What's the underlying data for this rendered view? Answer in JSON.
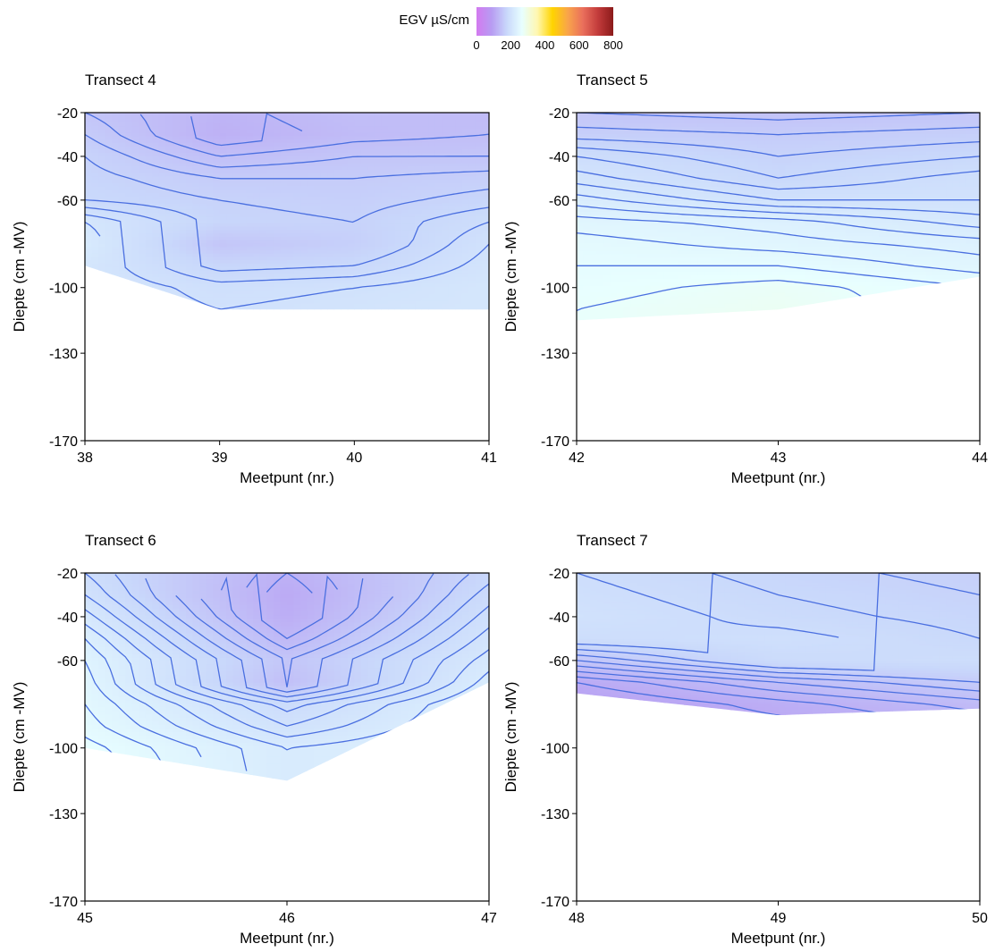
{
  "legend": {
    "title": "EGV µS/cm",
    "min": 0,
    "max": 800,
    "ticks": [
      0,
      200,
      400,
      600,
      800
    ],
    "colors": [
      "#d37af0",
      "#b79cf2",
      "#c9d8fb",
      "#e8ffff",
      "#fff7b0",
      "#ffd400",
      "#f9a54a",
      "#ea6f5c",
      "#c23b3b",
      "#8b1a1a"
    ]
  },
  "chart_data": [
    {
      "type": "heatmap",
      "title": "Transect 4",
      "xlabel": "Meetpunt (nr.)",
      "ylabel": "Diepte (cm -MV)",
      "xlim": [
        38,
        41
      ],
      "ylim": [
        -170,
        -20
      ],
      "xticks": [
        38,
        39,
        40,
        41
      ],
      "yticks": [
        -20,
        -40,
        -60,
        -100,
        -130,
        -170
      ],
      "x": [
        38,
        39,
        40,
        41
      ],
      "y": [
        -20,
        -30,
        -40,
        -50,
        -60,
        -70,
        -80,
        -90,
        -100,
        -110
      ],
      "z": [
        [
          150,
          125,
          140,
          135
        ],
        [
          160,
          120,
          135,
          140
        ],
        [
          170,
          140,
          150,
          150
        ],
        [
          175,
          160,
          160,
          165
        ],
        [
          180,
          170,
          165,
          175
        ],
        [
          210,
          175,
          170,
          190
        ],
        [
          220,
          150,
          165,
          200
        ],
        [
          210,
          175,
          180,
          205
        ],
        [
          null,
          195,
          200,
          210
        ],
        [
          null,
          200,
          205,
          210
        ]
      ],
      "bottom_depth": [
        -90,
        -110,
        -110,
        -110
      ]
    },
    {
      "type": "heatmap",
      "title": "Transect 5",
      "xlabel": "Meetpunt (nr.)",
      "ylabel": "Diepte (cm -MV)",
      "xlim": [
        42,
        44
      ],
      "ylim": [
        -170,
        -20
      ],
      "xticks": [
        42,
        43,
        44
      ],
      "yticks": [
        -20,
        -40,
        -60,
        -100,
        -130,
        -170
      ],
      "x": [
        42,
        43,
        44
      ],
      "y": [
        -20,
        -30,
        -40,
        -50,
        -60,
        -70,
        -80,
        -90,
        -100,
        -110
      ],
      "z": [
        [
          150,
          145,
          150
        ],
        [
          165,
          160,
          165
        ],
        [
          190,
          170,
          180
        ],
        [
          205,
          180,
          195
        ],
        [
          225,
          200,
          200
        ],
        [
          245,
          235,
          215
        ],
        [
          255,
          245,
          235
        ],
        [
          260,
          260,
          245
        ],
        [
          265,
          275,
          260
        ],
        [
          270,
          280,
          null
        ]
      ],
      "bottom_depth": [
        -115,
        -110,
        -95
      ]
    },
    {
      "type": "heatmap",
      "title": "Transect 6",
      "xlabel": "Meetpunt (nr.)",
      "ylabel": "Diepte (cm -MV)",
      "xlim": [
        45,
        47
      ],
      "ylim": [
        -170,
        -20
      ],
      "xticks": [
        45,
        46,
        47
      ],
      "yticks": [
        -20,
        -40,
        -60,
        -100,
        -130,
        -170
      ],
      "x": [
        45,
        46,
        47
      ],
      "y": [
        -20,
        -30,
        -40,
        -50,
        -60,
        -70,
        -80,
        -90,
        -100,
        -110
      ],
      "z": [
        [
          190,
          120,
          175
        ],
        [
          200,
          110,
          185
        ],
        [
          215,
          115,
          195
        ],
        [
          230,
          130,
          205
        ],
        [
          240,
          150,
          215
        ],
        [
          245,
          140,
          225
        ],
        [
          250,
          185,
          235
        ],
        [
          255,
          200,
          null
        ],
        [
          265,
          220,
          null
        ],
        [
          270,
          null,
          null
        ]
      ],
      "bottom_depth": [
        -100,
        -115,
        -70
      ]
    },
    {
      "type": "heatmap",
      "title": "Transect 7",
      "xlabel": "Meetpunt (nr.)",
      "ylabel": "Diepte (cm -MV)",
      "xlim": [
        48,
        50
      ],
      "ylim": [
        -170,
        -20
      ],
      "xticks": [
        48,
        49,
        50
      ],
      "yticks": [
        -20,
        -40,
        -60,
        -100,
        -130,
        -170
      ],
      "x": [
        48,
        49,
        50
      ],
      "y": [
        -20,
        -30,
        -40,
        -50,
        -60,
        -70,
        -80,
        -90
      ],
      "z": [
        [
          190,
          175,
          165
        ],
        [
          195,
          180,
          170
        ],
        [
          200,
          185,
          175
        ],
        [
          190,
          195,
          180
        ],
        [
          150,
          185,
          190
        ],
        [
          110,
          140,
          160
        ],
        [
          95,
          115,
          135
        ],
        [
          null,
          105,
          120
        ]
      ],
      "bottom_depth": [
        -75,
        -85,
        -82
      ]
    }
  ]
}
